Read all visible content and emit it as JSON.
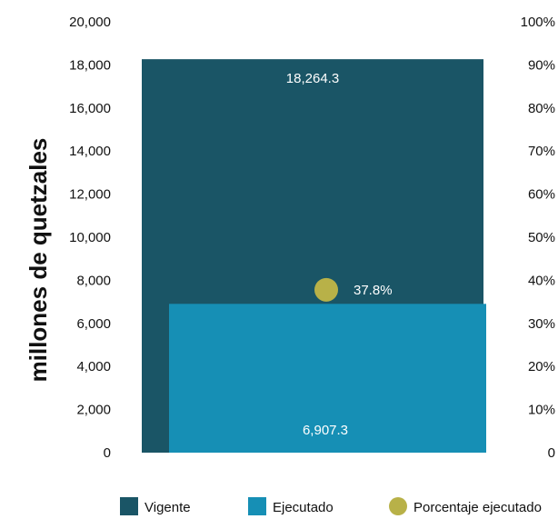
{
  "chart_data": {
    "type": "bar",
    "ylabel": "millones de quetzales",
    "ylim": [
      0,
      20000
    ],
    "y_ticks": [
      "0",
      "2,000",
      "4,000",
      "6,000",
      "8,000",
      "10,000",
      "12,000",
      "14,000",
      "16,000",
      "18,000",
      "20,000"
    ],
    "y_tick_values": [
      0,
      2000,
      4000,
      6000,
      8000,
      10000,
      12000,
      14000,
      16000,
      18000,
      20000
    ],
    "y2lim": [
      0,
      100
    ],
    "y2_ticks": [
      "0",
      "10%",
      "20%",
      "30%",
      "40%",
      "50%",
      "60%",
      "70%",
      "80%",
      "90%",
      "100%"
    ],
    "y2_tick_values": [
      0,
      10,
      20,
      30,
      40,
      50,
      60,
      70,
      80,
      90,
      100
    ],
    "series": [
      {
        "name": "Vigente",
        "value": 18264.3,
        "label": "18,264.3",
        "color": "#1a5566"
      },
      {
        "name": "Ejecutado",
        "value": 6907.3,
        "label": "6,907.3",
        "color": "#168fb5"
      }
    ],
    "marker": {
      "name": "Porcentaje ejecutado",
      "value": 37.8,
      "label": "37.8%",
      "color": "#b8b148"
    },
    "legend_position": "bottom",
    "grid": false
  }
}
